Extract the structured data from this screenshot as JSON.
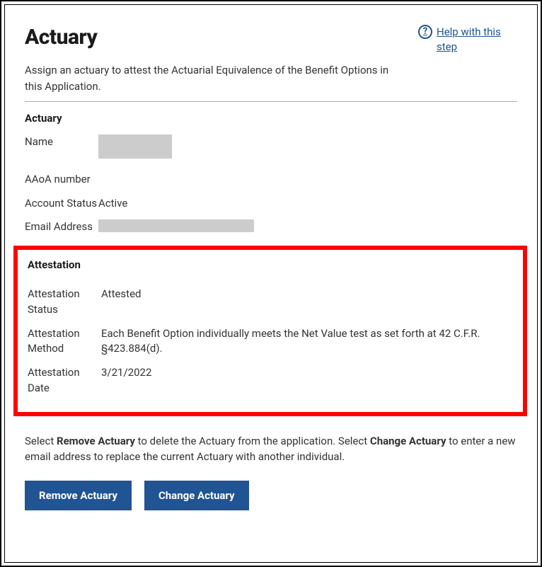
{
  "header": {
    "title": "Actuary",
    "help_label": "Help with this step"
  },
  "intro": "Assign an actuary to attest the Actuarial Equivalence of the Benefit Options in this Application.",
  "actuary_section": {
    "heading": "Actuary",
    "fields": {
      "name_label": "Name",
      "aaoa_label": "AAoA number",
      "account_status_label": "Account Status",
      "account_status_value": "Active",
      "email_label": "Email Address"
    }
  },
  "attestation_section": {
    "heading": "Attestation",
    "fields": {
      "status_label": "Attestation Status",
      "status_value": "Attested",
      "method_label": "Attestation Method",
      "method_value": "Each Benefit Option individually meets the Net Value test as set forth at 42 C.F.R. §423.884(d).",
      "date_label": "Attestation Date",
      "date_value": "3/21/2022"
    }
  },
  "instructions": {
    "pre": "Select ",
    "bold1": "Remove Actuary",
    "mid": " to delete the Actuary from the application. Select ",
    "bold2": "Change Actuary",
    "post": " to enter a new email address to replace the current Actuary with another individual."
  },
  "buttons": {
    "remove": "Remove Actuary",
    "change": "Change Actuary"
  },
  "colors": {
    "link": "#205493",
    "button_bg": "#205493",
    "highlight_border": "#ff0000",
    "redacted": "#cccccc",
    "divider": "#adadad"
  }
}
